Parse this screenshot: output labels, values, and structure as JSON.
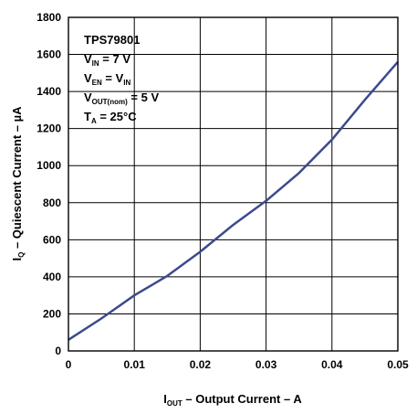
{
  "chart_data": {
    "type": "line",
    "xlabel": {
      "main": "I",
      "sub": "OUT",
      "rest": " – Output Current – A"
    },
    "ylabel": {
      "main": "I",
      "sub": "Q",
      "rest": " – Quiescent Current – µA"
    },
    "xlim": [
      0,
      0.05
    ],
    "ylim": [
      0,
      1800
    ],
    "x_ticks": [
      "0",
      "0.01",
      "0.02",
      "0.03",
      "0.04",
      "0.05"
    ],
    "y_ticks": [
      "0",
      "200",
      "400",
      "600",
      "800",
      "1000",
      "1200",
      "1400",
      "1600",
      "1800"
    ],
    "grid": true,
    "line_color": "#3b4a8c",
    "series": [
      {
        "x": [
          0,
          0.005,
          0.01,
          0.015,
          0.02,
          0.025,
          0.03,
          0.035,
          0.04,
          0.045,
          0.05
        ],
        "y": [
          60,
          175,
          300,
          405,
          535,
          680,
          810,
          960,
          1140,
          1355,
          1560
        ]
      }
    ],
    "annotations": [
      {
        "main": "TPS79801"
      },
      {
        "main": "V",
        "sub": "IN",
        "rest": " = 7 V"
      },
      {
        "main": "V",
        "sub": "EN",
        "rest": " = V",
        "sub2": "IN"
      },
      {
        "main": "V",
        "sub": "OUT(nom)",
        "rest": " = 5 V"
      },
      {
        "main": "T",
        "sub": "A",
        "rest": " = 25°C"
      }
    ]
  }
}
